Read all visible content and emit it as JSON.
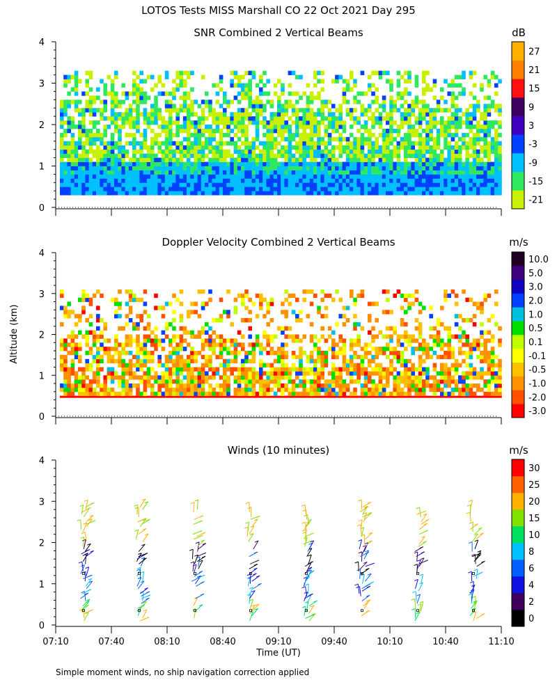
{
  "figure": {
    "title": "LOTOS Tests MISS Marshall CO  22 Oct 2021 Day 295",
    "ylabel": "Altitude (km)",
    "xlabel": "Time (UT)",
    "footnote": "Simple moment winds, no ship navigation correction applied"
  },
  "chart_data": [
    {
      "type": "heatmap",
      "title": "SNR Combined 2 Vertical Beams",
      "unit": "dB",
      "ylim": [
        0,
        4
      ],
      "yticks": [
        "0",
        "1",
        "2",
        "3",
        "4"
      ],
      "xticks": [
        "07:10",
        "07:40",
        "08:10",
        "08:40",
        "09:10",
        "09:40",
        "10:10",
        "10:40",
        "11:10"
      ],
      "colorbar": {
        "labels": [
          "-21",
          "-15",
          "-9",
          "-3",
          "3",
          "9",
          "15",
          "21",
          "27"
        ],
        "colors": [
          "#c8f000",
          "#30e860",
          "#00c0ff",
          "#0040ff",
          "#4000c0",
          "#400060",
          "#ff1010",
          "#ff8000",
          "#ffb000"
        ]
      }
    },
    {
      "type": "heatmap",
      "title": "Doppler Velocity Combined 2 Vertical Beams",
      "unit": "m/s",
      "ylim": [
        0,
        4
      ],
      "yticks": [
        "0",
        "1",
        "2",
        "3",
        "4"
      ],
      "xticks": [
        "07:10",
        "07:40",
        "08:10",
        "08:40",
        "09:10",
        "09:40",
        "10:10",
        "10:40",
        "11:10"
      ],
      "colorbar": {
        "labels": [
          "-3.0",
          "-2.0",
          "-1.0",
          "-0.5",
          "-0.1",
          "0.1",
          "0.5",
          "1.0",
          "2.0",
          "3.0",
          "5.0",
          "10.0"
        ],
        "colors": [
          "#ff0000",
          "#ff5000",
          "#ff9000",
          "#ffc000",
          "#ffff00",
          "#c0ff00",
          "#00e000",
          "#00c0e0",
          "#0040ff",
          "#1000c0",
          "#400080",
          "#200020"
        ]
      }
    },
    {
      "type": "scatter",
      "title": "Winds (10 minutes)",
      "unit": "m/s",
      "ylim": [
        0,
        4
      ],
      "yticks": [
        "0",
        "1",
        "2",
        "3",
        "4"
      ],
      "xticks": [
        "07:10",
        "07:40",
        "08:10",
        "08:40",
        "09:10",
        "09:40",
        "10:10",
        "10:40",
        "11:10"
      ],
      "profile_times": [
        "07:25",
        "07:55",
        "08:25",
        "08:55",
        "09:25",
        "09:55",
        "10:25",
        "10:55"
      ],
      "colorbar": {
        "labels": [
          "0",
          "2",
          "4",
          "6",
          "8",
          "10",
          "15",
          "20",
          "25",
          "30"
        ],
        "colors": [
          "#000000",
          "#400060",
          "#1010e0",
          "#0060ff",
          "#00c0ff",
          "#00e060",
          "#80e000",
          "#ffb000",
          "#ff6000",
          "#ff0000"
        ]
      }
    }
  ]
}
